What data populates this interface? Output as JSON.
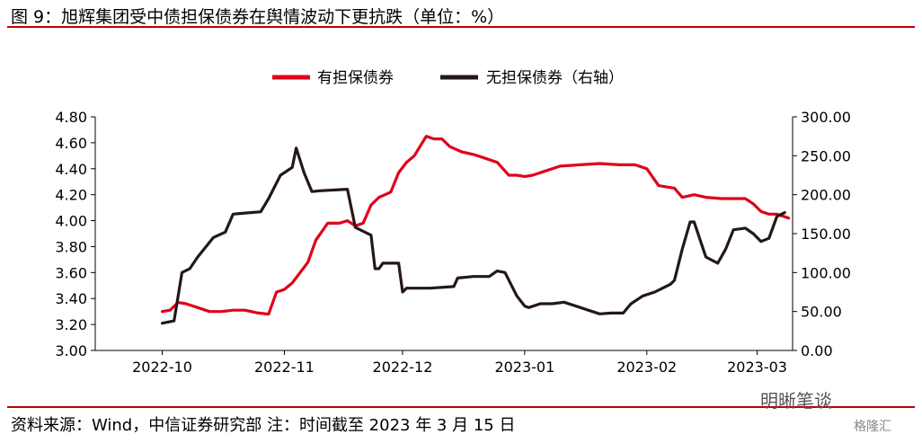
{
  "figure": {
    "title": "图 9：旭辉集团受中债担保债券在舆情波动下更抗跌（单位：%）",
    "source": "资料来源：Wind，中信证券研究部 注：时间截至 2023 年 3 月 15 日",
    "watermark": "明晰笔谈",
    "watermark2": "格隆汇"
  },
  "colors": {
    "rule": "#c00000",
    "guaranteed": "#e0001b",
    "unguaranteed": "#231815"
  },
  "chart_data": {
    "type": "line",
    "x_ticks": [
      "2022-10",
      "2022-11",
      "2022-12",
      "2023-01",
      "2023-02",
      "2023-03"
    ],
    "y_left": {
      "lim": [
        3.0,
        4.8
      ],
      "ticks": [
        "3.00",
        "3.20",
        "3.40",
        "3.60",
        "3.80",
        "4.00",
        "4.20",
        "4.40",
        "4.60",
        "4.80"
      ]
    },
    "y_right": {
      "lim": [
        0,
        300
      ],
      "ticks": [
        "0.00",
        "50.00",
        "100.00",
        "150.00",
        "200.00",
        "250.00",
        "300.00"
      ]
    },
    "legend_position": "top-center",
    "series": [
      {
        "name": "有担保债券",
        "axis": "left",
        "x": [
          "2022-10-01",
          "2022-10-03",
          "2022-10-05",
          "2022-10-07",
          "2022-10-10",
          "2022-10-13",
          "2022-10-16",
          "2022-10-19",
          "2022-10-22",
          "2022-10-25",
          "2022-10-28",
          "2022-10-30",
          "2022-10-31",
          "2022-11-01",
          "2022-11-03",
          "2022-11-07",
          "2022-11-09",
          "2022-11-12",
          "2022-11-15",
          "2022-11-17",
          "2022-11-19",
          "2022-11-21",
          "2022-11-23",
          "2022-11-25",
          "2022-11-28",
          "2022-11-30",
          "2022-12-02",
          "2022-12-04",
          "2022-12-07",
          "2022-12-09",
          "2022-12-11",
          "2022-12-13",
          "2022-12-16",
          "2022-12-19",
          "2022-12-22",
          "2022-12-25",
          "2022-12-28",
          "2022-12-30",
          "2023-01-01",
          "2023-01-03",
          "2023-01-06",
          "2023-01-10",
          "2023-01-15",
          "2023-01-20",
          "2023-01-25",
          "2023-01-29",
          "2023-02-01",
          "2023-02-04",
          "2023-02-08",
          "2023-02-10",
          "2023-02-13",
          "2023-02-16",
          "2023-02-20",
          "2023-02-23",
          "2023-02-26",
          "2023-02-28",
          "2023-03-02",
          "2023-03-04",
          "2023-03-06",
          "2023-03-09"
        ],
        "values": [
          3.3,
          3.31,
          3.37,
          3.36,
          3.33,
          3.3,
          3.3,
          3.31,
          3.31,
          3.29,
          3.28,
          3.45,
          3.46,
          3.47,
          3.52,
          3.68,
          3.85,
          3.98,
          3.98,
          4.0,
          3.96,
          3.98,
          4.12,
          4.18,
          4.22,
          4.37,
          4.45,
          4.5,
          4.65,
          4.63,
          4.63,
          4.57,
          4.53,
          4.51,
          4.48,
          4.45,
          4.35,
          4.35,
          4.34,
          4.35,
          4.38,
          4.42,
          4.43,
          4.44,
          4.43,
          4.43,
          4.4,
          4.27,
          4.25,
          4.18,
          4.2,
          4.18,
          4.17,
          4.17,
          4.17,
          4.13,
          4.07,
          4.05,
          4.05,
          4.02
        ]
      },
      {
        "name": "无担保债券（右轴）",
        "axis": "right",
        "x": [
          "2022-10-01",
          "2022-10-04",
          "2022-10-06",
          "2022-10-08",
          "2022-10-10",
          "2022-10-14",
          "2022-10-17",
          "2022-10-19",
          "2022-10-21",
          "2022-10-26",
          "2022-10-28",
          "2022-10-31",
          "2022-11-03",
          "2022-11-04",
          "2022-11-06",
          "2022-11-08",
          "2022-11-10",
          "2022-11-17",
          "2022-11-19",
          "2022-11-23",
          "2022-11-24",
          "2022-11-25",
          "2022-11-26",
          "2022-11-30",
          "2022-12-01",
          "2022-12-02",
          "2022-12-08",
          "2022-12-14",
          "2022-12-15",
          "2022-12-19",
          "2022-12-23",
          "2022-12-25",
          "2022-12-27",
          "2022-12-30",
          "2023-01-01",
          "2023-01-02",
          "2023-01-05",
          "2023-01-08",
          "2023-01-11",
          "2023-01-20",
          "2023-01-23",
          "2023-01-26",
          "2023-01-28",
          "2023-01-31",
          "2023-02-03",
          "2023-02-05",
          "2023-02-07",
          "2023-02-08",
          "2023-02-10",
          "2023-02-12",
          "2023-02-13",
          "2023-02-16",
          "2023-02-19",
          "2023-02-21",
          "2023-02-23",
          "2023-02-26",
          "2023-02-28",
          "2023-03-02",
          "2023-03-04",
          "2023-03-06",
          "2023-03-08"
        ],
        "values": [
          35,
          38,
          100,
          105,
          120,
          145,
          152,
          175,
          176,
          178,
          195,
          225,
          235,
          260,
          228,
          204,
          205,
          207,
          158,
          148,
          105,
          105,
          112,
          112,
          75,
          80,
          80,
          82,
          93,
          95,
          95,
          102,
          100,
          70,
          57,
          55,
          60,
          60,
          62,
          47,
          48,
          48,
          60,
          70,
          75,
          80,
          85,
          90,
          130,
          165,
          165,
          120,
          112,
          130,
          155,
          157,
          150,
          140,
          144,
          172,
          177
        ]
      }
    ]
  }
}
